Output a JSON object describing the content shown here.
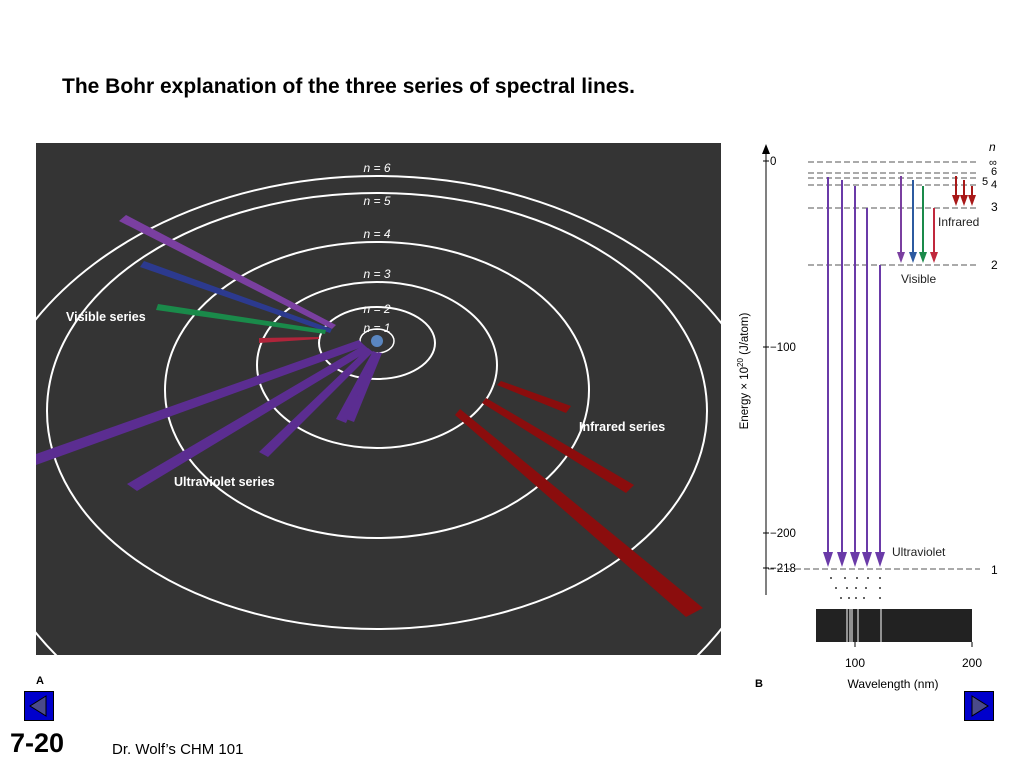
{
  "slide": {
    "title": "The Bohr explanation of the three series of spectral lines.",
    "number": "7-20",
    "footer": "Dr. Wolf’s CHM 101"
  },
  "panel_a": {
    "letter": "A",
    "orbit_labels": [
      "n = 6",
      "n = 5",
      "n = 4",
      "n = 3",
      "n = 2",
      "n = 1"
    ],
    "series_labels": {
      "visible": "Visible series",
      "infrared": "Infrared series",
      "ultraviolet": "Ultraviolet series"
    },
    "colors": {
      "background": "#343434",
      "orbit": "#ffffff",
      "ultraviolet": "#5b2d91",
      "visible_violet": "#7a3fa0",
      "visible_blue": "#2c3a8f",
      "visible_green": "#1a8a4a",
      "visible_red": "#b0243a",
      "infrared": "#8b0d0d"
    }
  },
  "panel_b": {
    "letter": "B",
    "n_header": "n",
    "n_labels": [
      "∞",
      "6",
      "5",
      "4",
      "3",
      "2",
      "1"
    ],
    "energy_ticks": [
      "0",
      "−100",
      "−200",
      "−218"
    ],
    "y_axis_label": "Energy × 10",
    "y_axis_exp": "20",
    "y_axis_unit": " (J/atom)",
    "x_ticks": [
      "100",
      "200"
    ],
    "x_axis_label": "Wavelength (nm)",
    "series_labels": {
      "infrared": "Infrared",
      "visible": "Visible",
      "ultraviolet": "Ultraviolet"
    },
    "colors": {
      "ultraviolet": "#6a3aa8",
      "visible_violet": "#7a3fa0",
      "visible_blue": "#2c5aa0",
      "visible_green": "#1a8a4a",
      "visible_red": "#c0283c",
      "infrared": "#a81818",
      "spectrum": "#222222"
    }
  },
  "nav": {
    "prev_icon": "triangle-left-icon",
    "next_icon": "triangle-right-icon"
  }
}
